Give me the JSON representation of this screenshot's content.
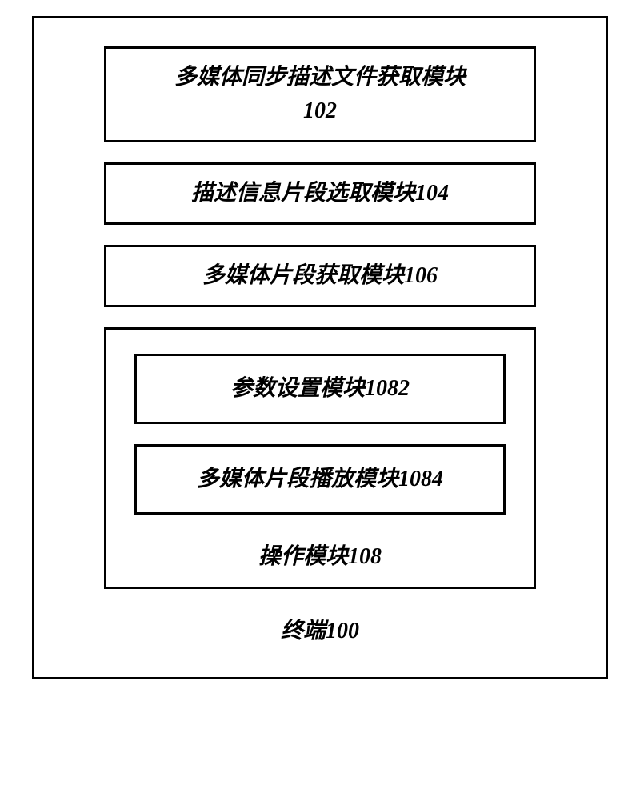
{
  "terminal": {
    "label": "终端100",
    "border_color": "#000000",
    "border_width": 3,
    "background_color": "#ffffff",
    "modules": [
      {
        "id": "102",
        "line1": "多媒体同步描述文件获取模块",
        "line2": "102"
      },
      {
        "id": "104",
        "text": "描述信息片段选取模块104"
      },
      {
        "id": "106",
        "text": "多媒体片段获取模块106"
      }
    ],
    "operation_module": {
      "label": "操作模块108",
      "sub_modules": [
        {
          "id": "1082",
          "text": "参数设置模块1082"
        },
        {
          "id": "1084",
          "text": "多媒体片段播放模块1084"
        }
      ]
    }
  },
  "styling": {
    "font_family": "SimSun",
    "font_size": 28,
    "font_weight": "bold",
    "font_style": "italic",
    "text_color": "#000000",
    "box_border_color": "#000000",
    "box_border_width": 3,
    "box_background": "#ffffff"
  }
}
